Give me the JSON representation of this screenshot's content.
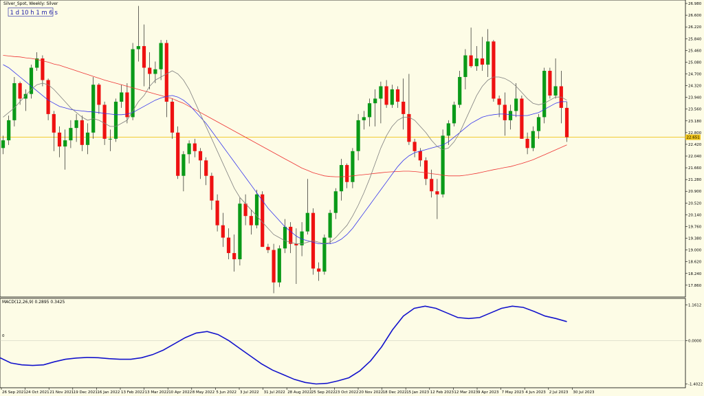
{
  "header": {
    "title": "Silver_Spot, Weekly: Silver",
    "timer": "1 d 10 h 1 m 6 s"
  },
  "colors": {
    "background": "#fdfce6",
    "bull": "#0a9a18",
    "bear": "#ee1111",
    "ma_fast": "#7f7f7f",
    "ma_mid": "#3333ee",
    "ma_slow": "#ee3333",
    "macd": "#1212cc",
    "price_line": "#f0c419",
    "grid_axis": "#000000"
  },
  "chart_data": [
    {
      "id": "price",
      "type": "candlestick",
      "title": "Silver_Spot, Weekly: Silver",
      "y_ticks": [
        "26.980",
        "26.600",
        "26.220",
        "25.840",
        "25.460",
        "25.080",
        "24.700",
        "24.320",
        "23.940",
        "23.560",
        "23.180",
        "22.800",
        "22.420",
        "22.040",
        "21.660",
        "21.280",
        "20.900",
        "20.520",
        "20.140",
        "19.760",
        "19.380",
        "19.000",
        "18.620",
        "18.240",
        "17.860"
      ],
      "ylim": [
        17.5,
        27.07
      ],
      "current_price": "22.651",
      "x_labels": [
        "26 Sep 2021",
        "24 Oct 2021",
        "21 Nov 2021",
        "19 Dec 2021",
        "16 Jan 2022",
        "13 Feb 2022",
        "13 Mar 2022",
        "10 Apr 2022",
        "8 May 2022",
        "5 Jun 2022",
        "3 Jul 2022",
        "31 Jul 2022",
        "28 Aug 2022",
        "25 Sep 2022",
        "23 Oct 2022",
        "20 Nov 2022",
        "18 Dec 2022",
        "15 Jan 2023",
        "12 Feb 2023",
        "12 Mar 2023",
        "9 Apr 2023",
        "7 May 2023",
        "4 Jun 2023",
        "2 Jul 2023",
        "30 Jul 2023"
      ],
      "ohlc": [
        [
          22.3,
          22.7,
          22.1,
          22.55
        ],
        [
          22.55,
          23.35,
          22.4,
          23.2
        ],
        [
          23.2,
          24.6,
          23.0,
          24.4
        ],
        [
          24.4,
          24.45,
          23.7,
          23.9
        ],
        [
          23.9,
          24.2,
          23.5,
          24.05
        ],
        [
          24.05,
          25.0,
          23.9,
          24.9
        ],
        [
          24.9,
          25.4,
          24.8,
          25.2
        ],
        [
          25.2,
          25.3,
          24.3,
          24.5
        ],
        [
          24.5,
          24.55,
          23.2,
          23.4
        ],
        [
          23.4,
          23.5,
          22.2,
          22.8
        ],
        [
          22.8,
          23.0,
          22.0,
          22.35
        ],
        [
          22.35,
          22.9,
          21.6,
          22.55
        ],
        [
          22.55,
          23.2,
          22.3,
          22.95
        ],
        [
          22.95,
          23.4,
          22.5,
          23.2
        ],
        [
          23.2,
          23.35,
          22.2,
          22.4
        ],
        [
          22.4,
          23.1,
          22.1,
          22.8
        ],
        [
          22.8,
          24.6,
          22.6,
          24.35
        ],
        [
          24.35,
          24.4,
          23.4,
          23.7
        ],
        [
          23.7,
          23.8,
          22.4,
          22.6
        ],
        [
          22.6,
          22.9,
          22.2,
          22.6
        ],
        [
          22.6,
          23.9,
          22.5,
          23.8
        ],
        [
          23.8,
          24.35,
          23.6,
          24.1
        ],
        [
          24.1,
          24.4,
          23.1,
          23.3
        ],
        [
          23.3,
          25.7,
          23.2,
          25.5
        ],
        [
          25.5,
          26.9,
          25.1,
          25.6
        ],
        [
          25.6,
          26.3,
          24.3,
          24.9
        ],
        [
          24.9,
          25.4,
          24.2,
          24.7
        ],
        [
          24.7,
          25.1,
          24.4,
          24.85
        ],
        [
          24.85,
          25.8,
          24.5,
          25.7
        ],
        [
          25.7,
          25.8,
          23.3,
          23.8
        ],
        [
          23.8,
          23.9,
          22.6,
          22.8
        ],
        [
          22.8,
          23.0,
          21.3,
          21.4
        ],
        [
          21.4,
          22.2,
          20.9,
          22.1
        ],
        [
          22.1,
          22.55,
          21.8,
          22.45
        ],
        [
          22.45,
          22.6,
          22.0,
          22.2
        ],
        [
          22.2,
          22.3,
          21.3,
          21.9
        ],
        [
          21.9,
          22.0,
          21.1,
          21.4
        ],
        [
          21.4,
          21.5,
          20.3,
          20.6
        ],
        [
          20.6,
          20.8,
          19.6,
          19.8
        ],
        [
          19.8,
          20.2,
          19.1,
          19.4
        ],
        [
          19.4,
          19.7,
          18.7,
          18.9
        ],
        [
          18.9,
          19.5,
          18.3,
          18.7
        ],
        [
          18.7,
          20.7,
          18.5,
          20.5
        ],
        [
          20.5,
          20.8,
          19.8,
          20.1
        ],
        [
          20.1,
          20.3,
          19.5,
          19.8
        ],
        [
          19.8,
          20.95,
          19.7,
          20.8
        ],
        [
          20.8,
          20.9,
          19.1,
          19.1
        ],
        [
          19.1,
          19.2,
          18.9,
          19.0
        ],
        [
          19.0,
          19.2,
          17.6,
          17.95
        ],
        [
          17.95,
          19.15,
          17.8,
          19.05
        ],
        [
          19.05,
          20.0,
          18.9,
          19.75
        ],
        [
          19.75,
          19.9,
          18.9,
          19.2
        ],
        [
          19.2,
          19.7,
          17.9,
          19.15
        ],
        [
          19.15,
          19.9,
          18.8,
          19.6
        ],
        [
          19.6,
          21.3,
          19.5,
          20.2
        ],
        [
          20.2,
          20.35,
          18.2,
          18.4
        ],
        [
          18.4,
          18.6,
          18.0,
          18.3
        ],
        [
          18.3,
          19.5,
          18.2,
          19.4
        ],
        [
          19.4,
          20.3,
          19.2,
          20.2
        ],
        [
          20.2,
          21.0,
          20.0,
          20.9
        ],
        [
          20.9,
          21.95,
          20.6,
          21.75
        ],
        [
          21.75,
          21.8,
          21.0,
          21.2
        ],
        [
          21.2,
          22.3,
          21.0,
          22.2
        ],
        [
          22.2,
          23.4,
          21.9,
          23.2
        ],
        [
          23.2,
          23.5,
          22.9,
          23.3
        ],
        [
          23.3,
          23.9,
          23.0,
          23.75
        ],
        [
          23.75,
          24.2,
          23.0,
          23.9
        ],
        [
          23.9,
          24.45,
          23.1,
          24.3
        ],
        [
          24.3,
          24.5,
          23.6,
          23.7
        ],
        [
          23.7,
          24.35,
          23.6,
          24.2
        ],
        [
          24.2,
          24.3,
          23.6,
          23.8
        ],
        [
          23.8,
          24.55,
          22.9,
          23.4
        ],
        [
          23.4,
          24.7,
          22.4,
          22.5
        ],
        [
          22.5,
          22.6,
          22.0,
          22.2
        ],
        [
          22.2,
          22.3,
          21.7,
          21.9
        ],
        [
          21.9,
          22.0,
          21.1,
          21.3
        ],
        [
          21.3,
          21.6,
          20.7,
          20.9
        ],
        [
          20.9,
          21.3,
          20.0,
          20.8
        ],
        [
          20.8,
          22.9,
          20.7,
          22.7
        ],
        [
          22.7,
          23.2,
          22.4,
          23.1
        ],
        [
          23.1,
          23.8,
          23.0,
          23.7
        ],
        [
          23.7,
          24.8,
          23.6,
          24.6
        ],
        [
          24.6,
          25.5,
          24.2,
          25.3
        ],
        [
          25.3,
          26.2,
          24.9,
          24.95
        ],
        [
          24.95,
          25.6,
          24.8,
          25.2
        ],
        [
          25.2,
          25.9,
          24.8,
          25.0
        ],
        [
          25.0,
          26.15,
          24.6,
          25.75
        ],
        [
          25.75,
          25.8,
          23.8,
          23.9
        ],
        [
          23.9,
          24.0,
          23.3,
          23.7
        ],
        [
          23.7,
          24.1,
          22.7,
          23.2
        ],
        [
          23.2,
          23.7,
          22.9,
          23.5
        ],
        [
          23.5,
          24.4,
          23.3,
          23.9
        ],
        [
          23.9,
          24.0,
          22.6,
          22.6
        ],
        [
          22.6,
          22.8,
          22.1,
          22.3
        ],
        [
          22.3,
          23.0,
          22.2,
          22.85
        ],
        [
          22.85,
          23.4,
          22.6,
          23.3
        ],
        [
          23.3,
          24.9,
          23.1,
          24.8
        ],
        [
          24.8,
          24.9,
          23.9,
          24.0
        ],
        [
          24.0,
          25.2,
          23.9,
          24.3
        ],
        [
          24.3,
          24.8,
          23.1,
          23.6
        ],
        [
          23.6,
          23.8,
          22.5,
          22.65
        ]
      ],
      "ma_fast": [
        23.3,
        23.45,
        23.6,
        23.8,
        24.0,
        24.2,
        24.35,
        24.4,
        24.35,
        24.2,
        24.0,
        23.8,
        23.6,
        23.45,
        23.3,
        23.2,
        23.25,
        23.2,
        23.1,
        23.0,
        23.0,
        23.1,
        23.2,
        23.5,
        23.8,
        24.0,
        24.3,
        24.5,
        24.6,
        24.7,
        24.8,
        24.7,
        24.5,
        24.2,
        23.8,
        23.4,
        23.0,
        22.6,
        22.2,
        21.8,
        21.4,
        21.0,
        20.7,
        20.5,
        20.3,
        20.1,
        19.9,
        19.7,
        19.5,
        19.4,
        19.3,
        19.25,
        19.2,
        19.2,
        19.25,
        19.3,
        19.25,
        19.2,
        19.25,
        19.4,
        19.6,
        19.8,
        20.1,
        20.45,
        20.85,
        21.3,
        21.8,
        22.3,
        22.7,
        23.0,
        23.2,
        23.3,
        23.3,
        23.2,
        23.0,
        22.8,
        22.55,
        22.35,
        22.25,
        22.3,
        22.5,
        22.8,
        23.2,
        23.6,
        24.0,
        24.3,
        24.5,
        24.6,
        24.6,
        24.55,
        24.45,
        24.3,
        24.1,
        23.9,
        23.75,
        23.7,
        23.75,
        23.85,
        23.95,
        23.95,
        23.85
      ],
      "ma_mid": [
        25.0,
        24.9,
        24.75,
        24.6,
        24.45,
        24.3,
        24.15,
        24.0,
        23.85,
        23.75,
        23.65,
        23.6,
        23.55,
        23.52,
        23.5,
        23.48,
        23.47,
        23.45,
        23.42,
        23.4,
        23.38,
        23.38,
        23.4,
        23.45,
        23.55,
        23.65,
        23.75,
        23.85,
        23.92,
        23.97,
        24.0,
        23.95,
        23.85,
        23.7,
        23.5,
        23.3,
        23.1,
        22.85,
        22.6,
        22.35,
        22.1,
        21.85,
        21.6,
        21.35,
        21.1,
        20.85,
        20.6,
        20.35,
        20.15,
        19.95,
        19.75,
        19.6,
        19.45,
        19.35,
        19.3,
        19.25,
        19.2,
        19.2,
        19.2,
        19.25,
        19.35,
        19.5,
        19.7,
        19.95,
        20.2,
        20.45,
        20.7,
        20.95,
        21.2,
        21.45,
        21.7,
        21.9,
        22.05,
        22.15,
        22.2,
        22.25,
        22.3,
        22.35,
        22.4,
        22.5,
        22.65,
        22.8,
        22.95,
        23.1,
        23.2,
        23.3,
        23.35,
        23.38,
        23.4,
        23.4,
        23.38,
        23.35,
        23.35,
        23.35,
        23.4,
        23.45,
        23.55,
        23.65,
        23.75,
        23.8,
        23.8
      ],
      "ma_slow": [
        25.3,
        25.28,
        25.26,
        25.25,
        25.22,
        25.2,
        25.17,
        25.12,
        25.08,
        25.02,
        24.98,
        24.92,
        24.86,
        24.8,
        24.74,
        24.68,
        24.62,
        24.56,
        24.5,
        24.45,
        24.4,
        24.35,
        24.3,
        24.25,
        24.2,
        24.15,
        24.1,
        24.05,
        24.0,
        23.95,
        23.9,
        23.82,
        23.75,
        23.65,
        23.55,
        23.45,
        23.35,
        23.25,
        23.15,
        23.05,
        22.95,
        22.85,
        22.75,
        22.65,
        22.55,
        22.45,
        22.35,
        22.25,
        22.15,
        22.05,
        21.95,
        21.85,
        21.75,
        21.65,
        21.58,
        21.5,
        21.45,
        21.4,
        21.38,
        21.37,
        21.37,
        21.38,
        21.4,
        21.42,
        21.44,
        21.46,
        21.48,
        21.5,
        21.52,
        21.53,
        21.54,
        21.55,
        21.55,
        21.54,
        21.52,
        21.5,
        21.47,
        21.45,
        21.42,
        21.4,
        21.4,
        21.4,
        21.42,
        21.45,
        21.48,
        21.52,
        21.56,
        21.6,
        21.63,
        21.67,
        21.7,
        21.75,
        21.8,
        21.86,
        21.92,
        22.0,
        22.08,
        22.16,
        22.24,
        22.32,
        22.4
      ]
    },
    {
      "id": "macd",
      "type": "line",
      "title": "MACD(12,26,9) 0.2895 0.3425",
      "y_ticks": [
        "1.1612",
        "0.0000",
        "-1.4022"
      ],
      "zero_label": "0",
      "ylim": [
        -1.5,
        1.35
      ],
      "values": [
        -0.55,
        -0.72,
        -0.78,
        -0.8,
        -0.78,
        -0.68,
        -0.6,
        -0.56,
        -0.54,
        -0.55,
        -0.58,
        -0.6,
        -0.6,
        -0.55,
        -0.45,
        -0.3,
        -0.1,
        0.1,
        0.25,
        0.3,
        0.2,
        0.0,
        -0.25,
        -0.5,
        -0.75,
        -0.95,
        -1.1,
        -1.25,
        -1.35,
        -1.4,
        -1.38,
        -1.3,
        -1.2,
        -0.98,
        -0.65,
        -0.2,
        0.35,
        0.8,
        1.05,
        1.12,
        1.05,
        0.9,
        0.75,
        0.72,
        0.75,
        0.9,
        1.05,
        1.12,
        1.08,
        0.95,
        0.8,
        0.72,
        0.62
      ]
    }
  ]
}
